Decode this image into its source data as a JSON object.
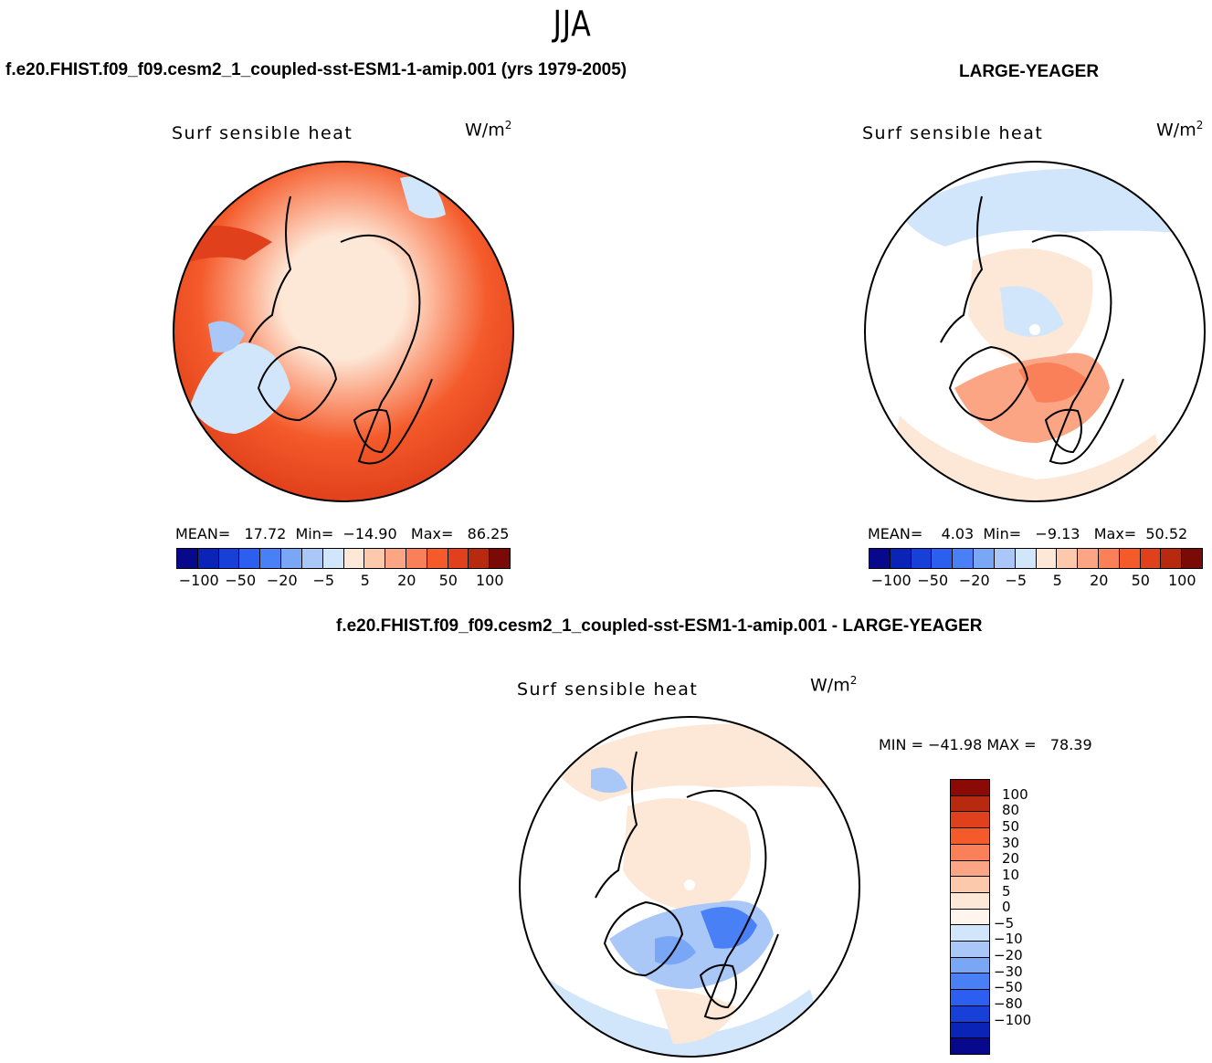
{
  "season": "JJA",
  "panels": {
    "test": {
      "case_title": "f.e20.FHIST.f09_f09.cesm2_1_coupled-sst-ESM1-1-amip.001 (yrs 1979-2005)",
      "var_title": "Surf  sensible  heat",
      "units_base": "W/m",
      "units_exp": "2",
      "stats": "MEAN=   17.72  Min=  −14.90   Max=   86.25"
    },
    "obs": {
      "case_title": "LARGE-YEAGER",
      "var_title": "Surf  sensible  heat",
      "units_base": "W/m",
      "units_exp": "2",
      "stats": "MEAN=    4.03  Min=   −9.13   Max=  50.52"
    },
    "diff": {
      "case_title": "f.e20.FHIST.f09_f09.cesm2_1_coupled-sst-ESM1-1-amip.001 - LARGE-YEAGER",
      "var_title": "Surf  sensible  heat",
      "units_base": "W/m",
      "units_exp": "2",
      "minmax": "MIN = −41.98 MAX =   78.39"
    }
  },
  "colorbars": {
    "main": {
      "colors": [
        "#08088c",
        "#0a24b8",
        "#1740d8",
        "#2c5ef0",
        "#4a80f5",
        "#7aa6f6",
        "#a9c8f8",
        "#d2e6fb",
        "#fde7d6",
        "#fdc9ad",
        "#fba585",
        "#f98058",
        "#f45a2a",
        "#e0401b",
        "#b82a10",
        "#7a0a06"
      ],
      "tick_labels": [
        "−100",
        "−50",
        "−20",
        "−5",
        "5",
        "20",
        "50",
        "100"
      ]
    },
    "diff": {
      "colors": [
        "#8b0a06",
        "#b82a10",
        "#e0401b",
        "#f45a2a",
        "#f98058",
        "#fba585",
        "#fdc9ad",
        "#fde7d6",
        "#fef5ec",
        "#d2e6fb",
        "#a9c8f8",
        "#7aa6f6",
        "#4a80f5",
        "#2c5ef0",
        "#1740d8",
        "#0a24b8",
        "#08088c"
      ],
      "tick_labels": [
        "100",
        "80",
        "50",
        "30",
        "20",
        "10",
        "5",
        "0",
        "−5",
        "−10",
        "−20",
        "−30",
        "−50",
        "−80",
        "−100"
      ]
    }
  }
}
